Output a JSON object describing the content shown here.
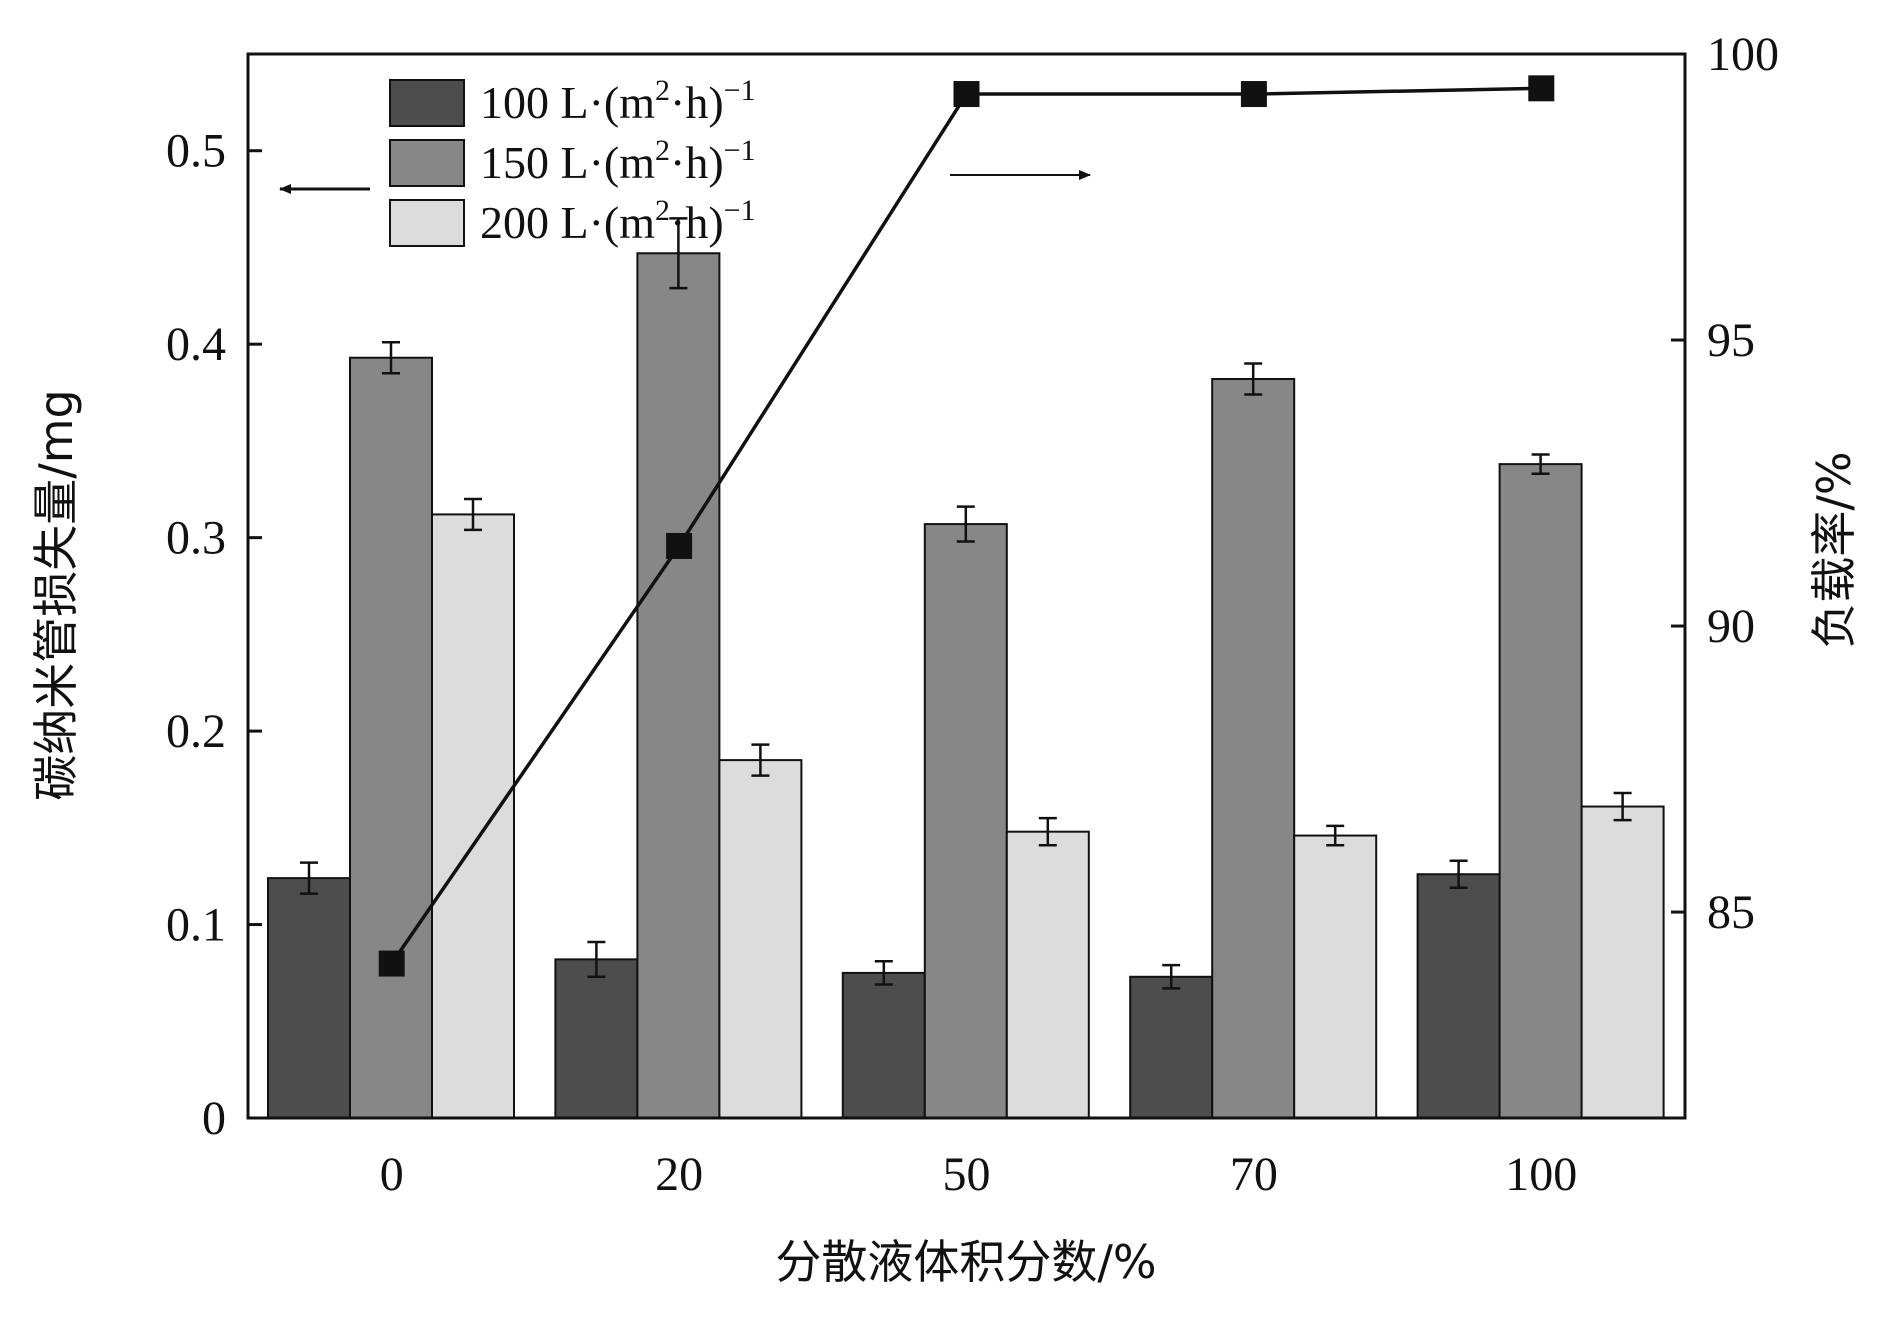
{
  "chart_data": {
    "type": "bar+line",
    "categories": [
      "0",
      "20",
      "50",
      "70",
      "100"
    ],
    "xlabel": "分散液体积分数/%",
    "ylabel_left": "碳纳米管损失量/mg",
    "ylabel_right": "负载率/%",
    "left_axis": {
      "range": [
        0,
        0.55
      ],
      "ticks": [
        0,
        0.1,
        0.2,
        0.3,
        0.4,
        0.5
      ],
      "tick_labels": [
        "0",
        "0.1",
        "0.2",
        "0.3",
        "0.4",
        "0.5"
      ]
    },
    "right_axis": {
      "range": [
        81.4,
        100
      ],
      "ticks": [
        85,
        90,
        95,
        100
      ],
      "tick_labels": [
        "85",
        "90",
        "95",
        "100"
      ]
    },
    "series": [
      {
        "name": "100 L·(m²·h)⁻¹",
        "legend_base": "100 L·(m",
        "axis": "left",
        "color": "#4d4d4d",
        "values": [
          0.124,
          0.082,
          0.075,
          0.073,
          0.126
        ],
        "errors": [
          0.008,
          0.009,
          0.006,
          0.006,
          0.007
        ]
      },
      {
        "name": "150 L·(m²·h)⁻¹",
        "legend_base": "150 L·(m",
        "axis": "left",
        "color": "#878787",
        "values": [
          0.393,
          0.447,
          0.307,
          0.382,
          0.338
        ],
        "errors": [
          0.008,
          0.018,
          0.009,
          0.008,
          0.005
        ]
      },
      {
        "name": "200 L·(m²·h)⁻¹",
        "legend_base": "200 L·(m",
        "axis": "left",
        "color": "#dcdcdc",
        "values": [
          0.312,
          0.185,
          0.148,
          0.146,
          0.161
        ],
        "errors": [
          0.008,
          0.008,
          0.007,
          0.005,
          0.007
        ]
      },
      {
        "name": "负载率",
        "type": "line",
        "axis": "right",
        "color": "#111111",
        "values": [
          84.1,
          91.4,
          99.3,
          99.3,
          99.4
        ]
      }
    ],
    "legend_sup": "2",
    "legend_mid": "·h)",
    "legend_exp": "−1",
    "annotations": [
      "arrow-to-left-axis",
      "arrow-to-right-axis"
    ]
  }
}
